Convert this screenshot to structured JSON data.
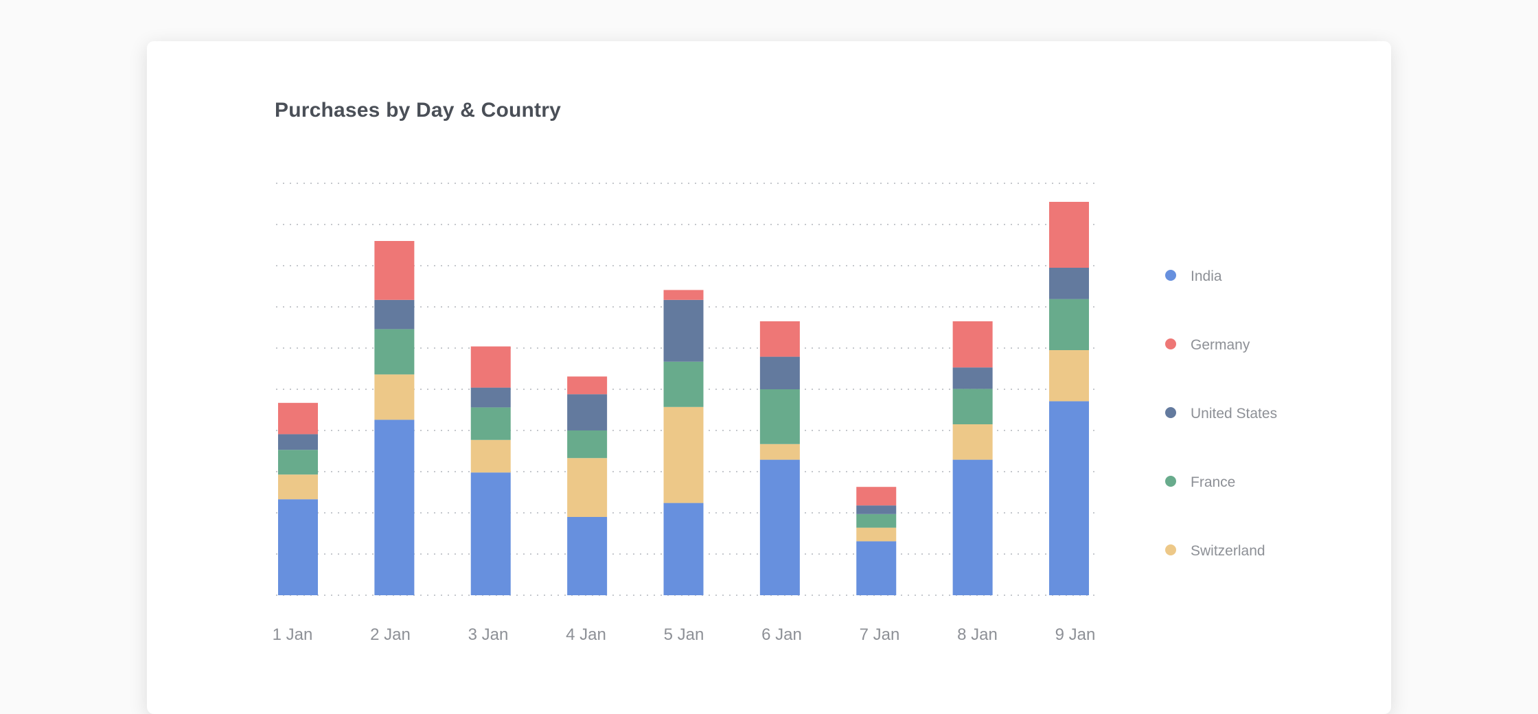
{
  "chart_data": {
    "type": "bar",
    "stacked": true,
    "title": "Purchases by Day & Country",
    "xlabel": "",
    "ylabel": "",
    "categories": [
      "1 Jan",
      "2 Jan",
      "3 Jan",
      "4 Jan",
      "5 Jan",
      "6 Jan",
      "7 Jan",
      "8 Jan",
      "9 Jan"
    ],
    "ylim": [
      0,
      100
    ],
    "grid": true,
    "legend_position": "right",
    "series": [
      {
        "name": "India",
        "color": "#6790de",
        "values": [
          23.3,
          42.6,
          29.8,
          19.0,
          22.4,
          32.9,
          13.1,
          32.9,
          47.1
        ]
      },
      {
        "name": "Switzerland",
        "color": "#edc888",
        "values": [
          6.0,
          11.0,
          7.9,
          14.3,
          23.3,
          3.8,
          3.3,
          8.6,
          12.4
        ]
      },
      {
        "name": "France",
        "color": "#68ab8c",
        "values": [
          6.0,
          11.0,
          7.9,
          6.7,
          11.0,
          13.3,
          3.3,
          8.6,
          12.4
        ]
      },
      {
        "name": "United States",
        "color": "#637a9e",
        "values": [
          3.8,
          7.1,
          4.8,
          8.8,
          15.0,
          7.9,
          2.1,
          5.2,
          7.6
        ]
      },
      {
        "name": "Germany",
        "color": "#ee7776",
        "values": [
          7.6,
          14.3,
          10.0,
          4.3,
          2.4,
          8.6,
          4.5,
          11.2,
          16.0
        ]
      }
    ],
    "legend_order": [
      "India",
      "Germany",
      "United States",
      "France",
      "Switzerland"
    ]
  }
}
